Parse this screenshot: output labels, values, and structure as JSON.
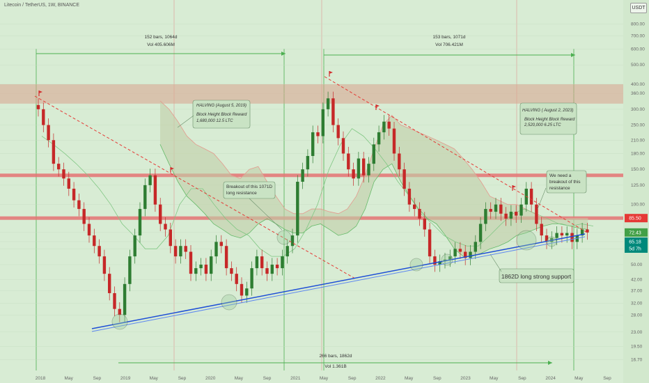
{
  "header": {
    "title": "Litecoin / TetherUS, 1W, BINANCE",
    "currency": "USDT"
  },
  "chart_data": {
    "type": "candlestick",
    "scale": "log",
    "price_axis": {
      "ticks": [
        "800.00",
        "700.00",
        "600.00",
        "500.00",
        "400.00",
        "360.00",
        "300.00",
        "250.00",
        "210.00",
        "180.00",
        "150.00",
        "125.00",
        "100.00",
        "85.00",
        "72.43",
        "65.18",
        "5d 7h",
        "60.00",
        "50.00",
        "42.00",
        "37.00",
        "32.00",
        "28.00",
        "23.00",
        "19.50",
        "16.70"
      ],
      "tick_values": [
        800,
        700,
        600,
        500,
        400,
        360,
        300,
        250,
        210,
        180,
        150,
        125,
        100,
        85,
        72.43,
        65.18,
        null,
        60,
        50,
        42,
        37,
        32,
        28,
        23,
        19.5,
        16.7
      ]
    },
    "time_axis": {
      "labels": [
        "2018",
        "May",
        "Sep",
        "2019",
        "May",
        "Sep",
        "2020",
        "May",
        "Sep",
        "2021",
        "May",
        "Sep",
        "2022",
        "May",
        "Sep",
        "2023",
        "May",
        "Sep",
        "2024",
        "May",
        "Sep"
      ]
    },
    "price_labels": [
      {
        "text": "85.50",
        "color": "#e53935"
      },
      {
        "text": "72.43",
        "color": "#43a047"
      },
      {
        "text": "65.18",
        "color": "#00897b"
      },
      {
        "text": "5d 7h",
        "color": "#00897b"
      }
    ],
    "series": [
      {
        "name": "Price",
        "kind": "candles",
        "close_path": [
          300,
          250,
          210,
          160,
          150,
          135,
          120,
          105,
          95,
          80,
          70,
          62,
          55,
          45,
          36,
          30,
          28,
          40,
          55,
          70,
          95,
          125,
          140,
          100,
          80,
          75,
          62,
          55,
          62,
          58,
          45,
          48,
          50,
          45,
          55,
          65,
          62,
          48,
          45,
          40,
          35,
          38,
          48,
          55,
          48,
          45,
          50,
          48,
          55,
          62,
          70,
          130,
          150,
          175,
          230,
          220,
          300,
          340,
          250,
          215,
          180,
          150,
          135,
          170,
          140,
          160,
          200,
          230,
          260,
          240,
          180,
          150,
          120,
          100,
          95,
          85,
          75,
          55,
          50,
          52,
          53,
          55,
          60,
          58,
          54,
          58,
          65,
          80,
          95,
          92,
          100,
          90,
          85,
          92,
          88,
          100,
          120,
          100,
          80,
          70,
          65,
          68,
          72,
          70,
          72,
          65,
          70,
          75,
          72.43
        ]
      },
      {
        "name": "Ichimoku cloud",
        "kind": "cloud",
        "upper": [
          330,
          300,
          260,
          220,
          200,
          190,
          180,
          160,
          140,
          135,
          150,
          155,
          130,
          110,
          95,
          90,
          90,
          95,
          95,
          92,
          90,
          95,
          110,
          140,
          190,
          250,
          280,
          250,
          240,
          230,
          220,
          210,
          200,
          190,
          170,
          150,
          130,
          110,
          105,
          100,
          100,
          95,
          90,
          85,
          85,
          85,
          85.5,
          85.5,
          85.5
        ],
        "lower": [
          200,
          160,
          130,
          110,
          100,
          90,
          80,
          75,
          70,
          68,
          72,
          80,
          85,
          80,
          75,
          72,
          72,
          78,
          80,
          75,
          70,
          72,
          78,
          95,
          130,
          150,
          160,
          130,
          110,
          95,
          85,
          80,
          70,
          60,
          55,
          55,
          57,
          60,
          62,
          65,
          70,
          72,
          75,
          78,
          80,
          80,
          78,
          76,
          75
        ]
      },
      {
        "name": "Conversion line",
        "kind": "line",
        "values": [
          220,
          200,
          180,
          160,
          140,
          120,
          100,
          80,
          70,
          60,
          60,
          70,
          100,
          120,
          120,
          100,
          85,
          75,
          70,
          60,
          55,
          55,
          60,
          75,
          100,
          150,
          200,
          240,
          220,
          190,
          160,
          130,
          110,
          90,
          80,
          70,
          65,
          62,
          62,
          70,
          80,
          90,
          95,
          90,
          85,
          80,
          78,
          80,
          78
        ]
      }
    ],
    "horizontal_zones": [
      {
        "type": "band",
        "from": 320,
        "to": 400
      },
      {
        "type": "line",
        "value": 140
      },
      {
        "type": "line",
        "value": 85.5
      }
    ],
    "annotations": [
      {
        "text": "152 bars, 1064d"
      },
      {
        "text": "Vol 405.606M"
      },
      {
        "text": "153 bars, 1071d"
      },
      {
        "text": "Vol 706.421M"
      },
      {
        "text": "266 bars, 1862d"
      },
      {
        "text": "Vol 1.361B"
      },
      {
        "text": "HALVING (August 5, 2019)"
      },
      {
        "text": "Block Height  Block Reward"
      },
      {
        "text": "1,680,000        12.5 LTC"
      },
      {
        "text": "HALVING ( August 2, 2023)"
      },
      {
        "text": "Block Height Block Reward"
      },
      {
        "text": "2,520,000 6.25 LTC"
      },
      {
        "text": "Breakout of this 1071D"
      },
      {
        "text": "long resistance"
      },
      {
        "text": "We need a"
      },
      {
        "text": "breakout of this"
      },
      {
        "text": "resistance"
      },
      {
        "text": "1862D long strong support"
      }
    ],
    "grid": true,
    "colors": {
      "background": "#d8ecd4",
      "up": "#2e7d32",
      "down": "#c62828",
      "resistance": "#e57373",
      "support": "#1e4fd6",
      "cloud": "#c2cfa8",
      "measure": "#4caf50"
    }
  }
}
